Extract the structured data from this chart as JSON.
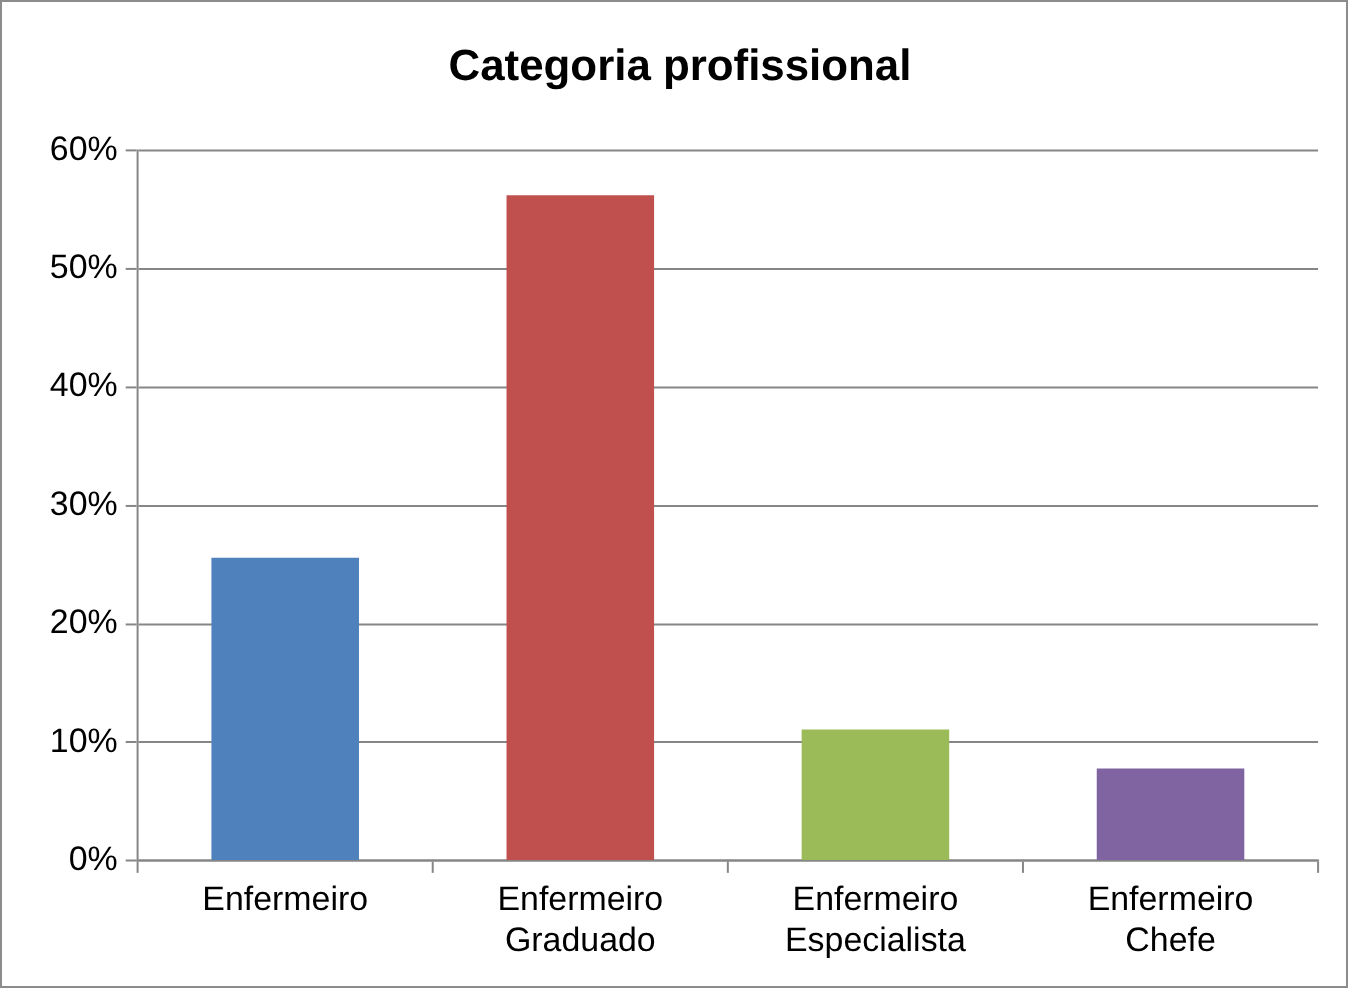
{
  "chart_data": {
    "type": "bar",
    "title": "Categoria profissional",
    "categories": [
      "Enfermeiro",
      "Enfermeiro Graduado",
      "Enfermeiro Especialista",
      "Enfermeiro Chefe"
    ],
    "values": [
      25.6,
      56.2,
      11.1,
      7.8
    ],
    "colors": [
      "#4f81bd",
      "#c0504d",
      "#9bbb59",
      "#8064a2"
    ],
    "ylim": [
      0,
      60
    ],
    "yticks": [
      {
        "value": 0,
        "label": "0%"
      },
      {
        "value": 10,
        "label": "10%"
      },
      {
        "value": 20,
        "label": "20%"
      },
      {
        "value": 30,
        "label": "30%"
      },
      {
        "value": 40,
        "label": "40%"
      },
      {
        "value": 50,
        "label": "50%"
      },
      {
        "value": 60,
        "label": "60%"
      }
    ],
    "grid": "y"
  }
}
